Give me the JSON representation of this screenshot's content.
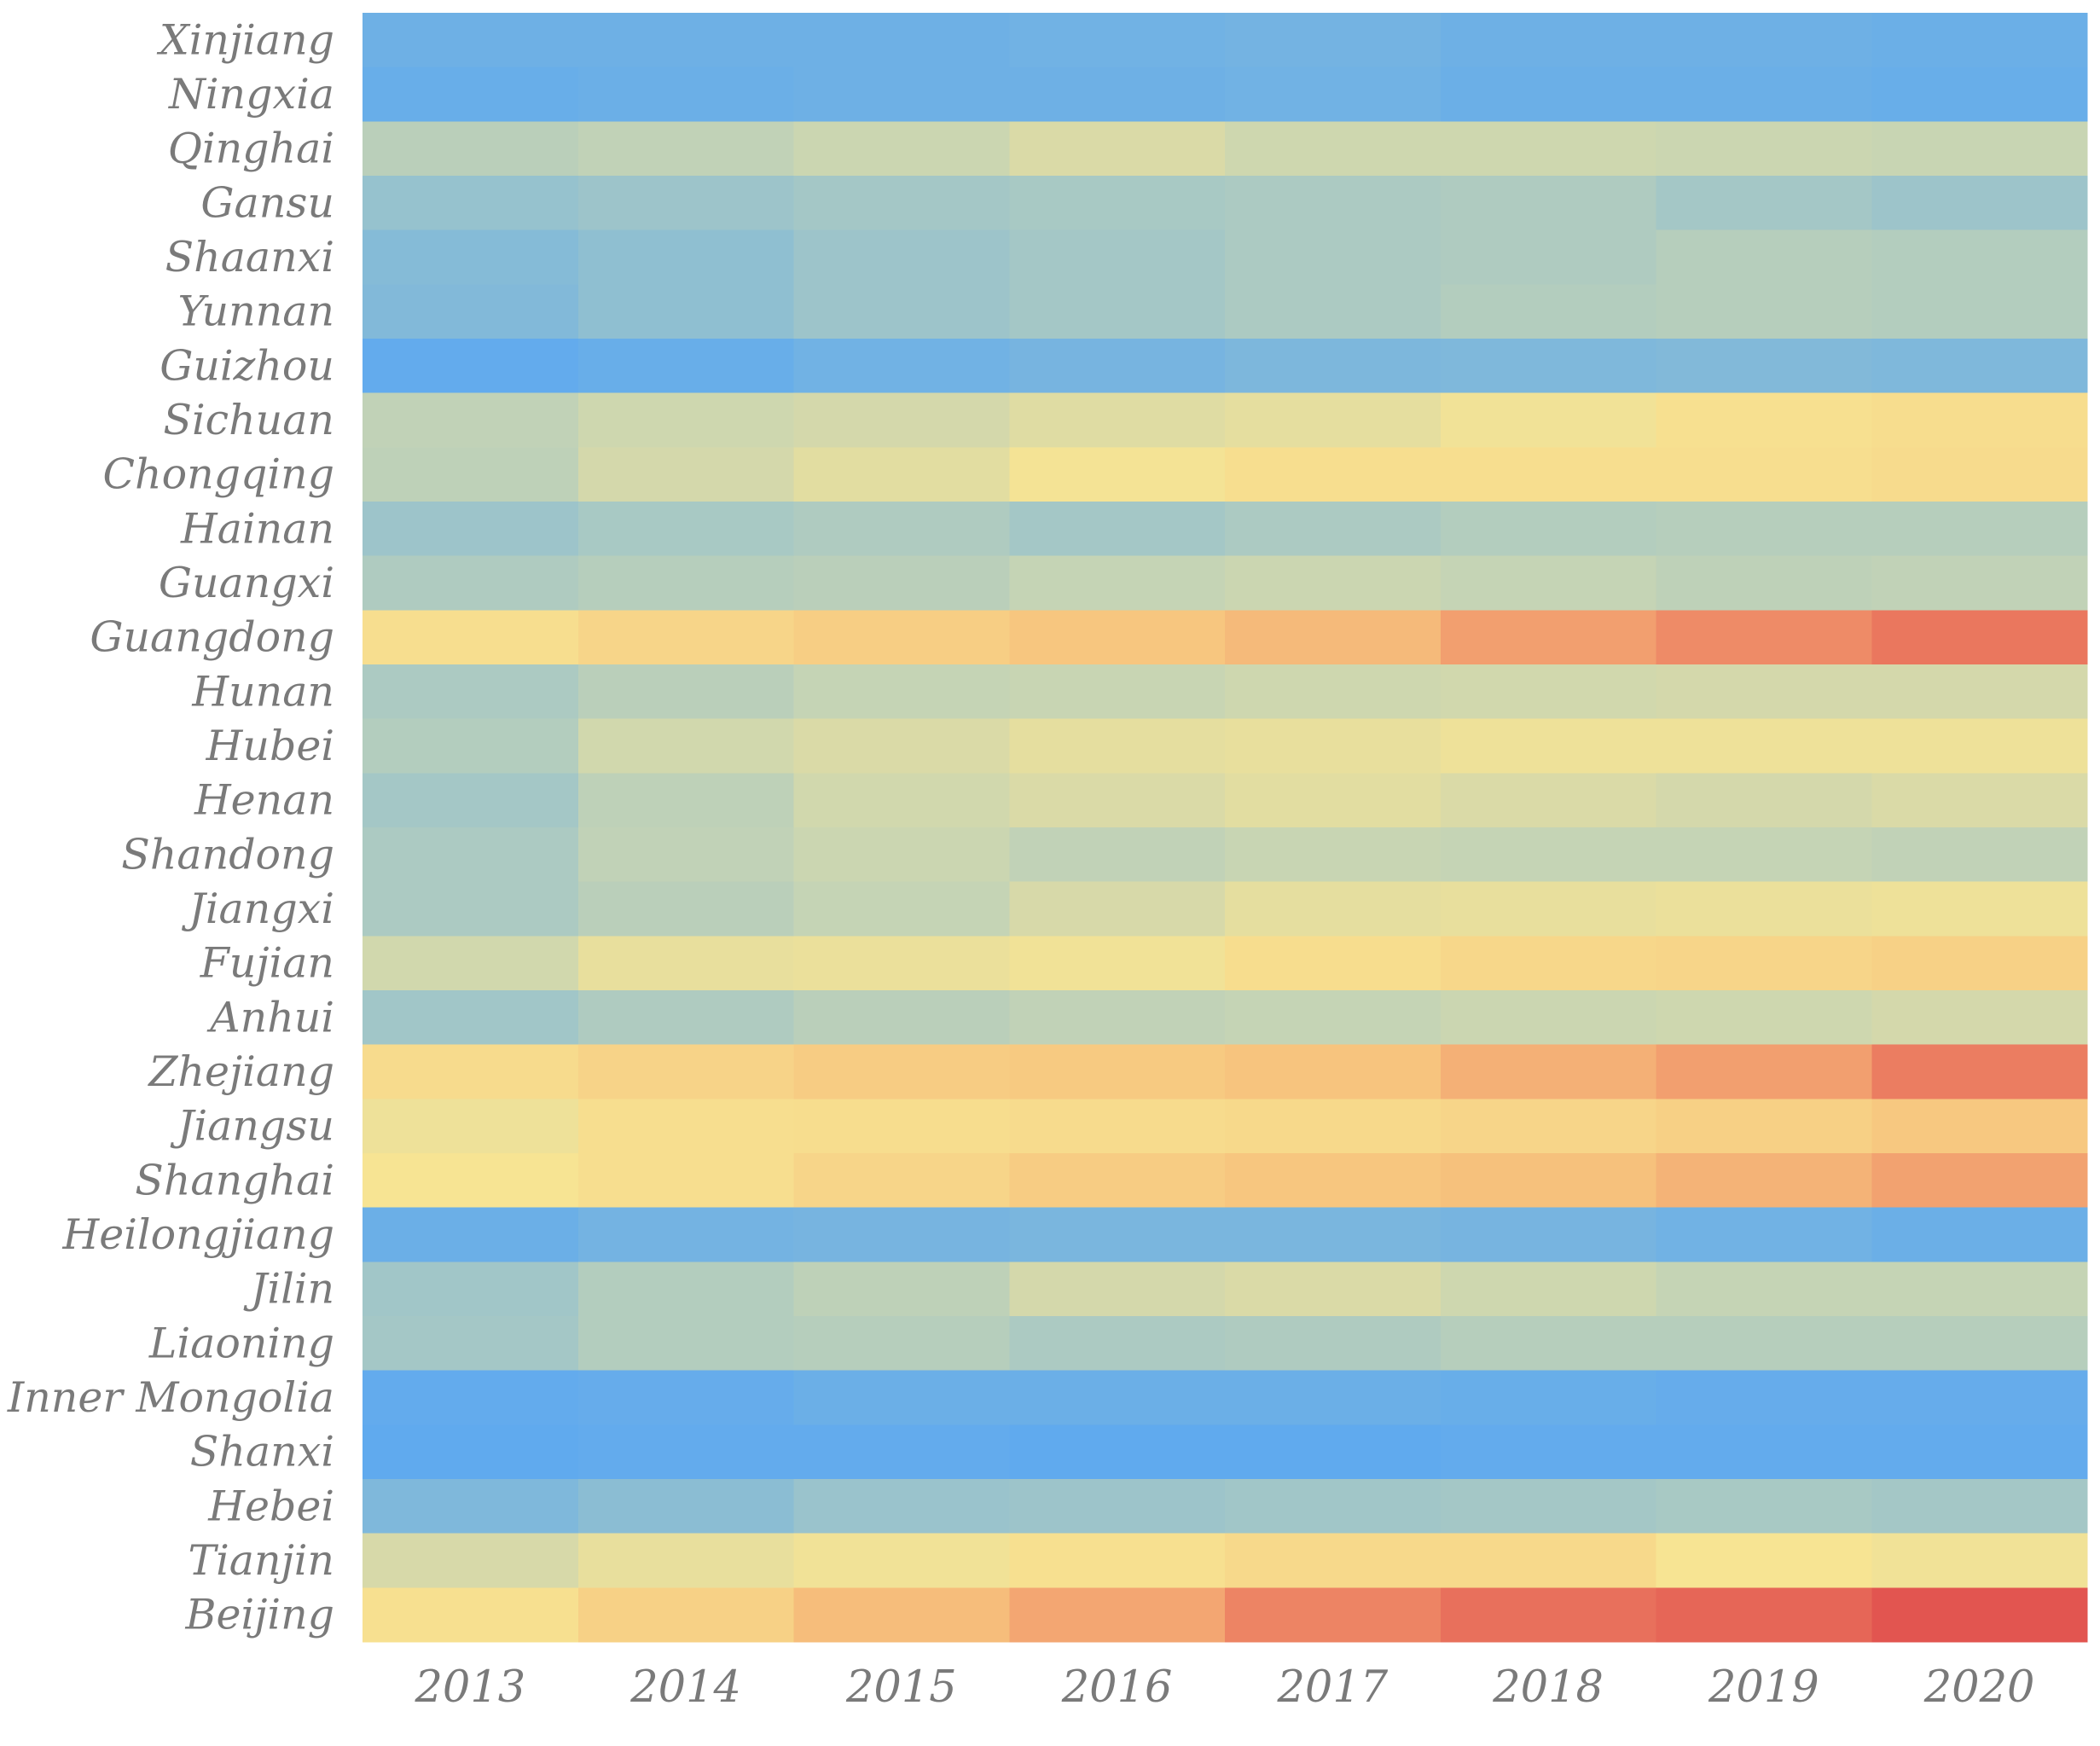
{
  "chart_data": {
    "type": "heatmap",
    "title": "",
    "xlabel": "",
    "ylabel": "",
    "x": [
      "2013",
      "2014",
      "2015",
      "2016",
      "2017",
      "2018",
      "2019",
      "2020"
    ],
    "y": [
      "Xinjiang",
      "Ningxia",
      "Qinghai",
      "Gansu",
      "Shaanxi",
      "Yunnan",
      "Guizhou",
      "Sichuan",
      "Chongqing",
      "Hainan",
      "Guangxi",
      "Guangdong",
      "Hunan",
      "Hubei",
      "Henan",
      "Shandong",
      "Jiangxi",
      "Fujian",
      "Anhui",
      "Zhejiang",
      "Jiangsu",
      "Shanghai",
      "Heilongjiang",
      "Jilin",
      "Liaoning",
      "Inner Mongolia",
      "Shanxi",
      "Hebei",
      "Tianjin",
      "Beijing"
    ],
    "value_range": [
      0,
      1
    ],
    "values": [
      [
        0.07,
        0.07,
        0.07,
        0.08,
        0.09,
        0.07,
        0.07,
        0.06
      ],
      [
        0.05,
        0.06,
        0.07,
        0.07,
        0.08,
        0.06,
        0.06,
        0.05
      ],
      [
        0.3,
        0.32,
        0.35,
        0.4,
        0.36,
        0.36,
        0.35,
        0.34
      ],
      [
        0.2,
        0.22,
        0.24,
        0.25,
        0.26,
        0.27,
        0.24,
        0.22
      ],
      [
        0.15,
        0.18,
        0.22,
        0.24,
        0.26,
        0.27,
        0.29,
        0.28
      ],
      [
        0.14,
        0.18,
        0.22,
        0.24,
        0.26,
        0.28,
        0.29,
        0.28
      ],
      [
        0.03,
        0.05,
        0.08,
        0.1,
        0.12,
        0.13,
        0.14,
        0.13
      ],
      [
        0.32,
        0.36,
        0.38,
        0.42,
        0.44,
        0.48,
        0.52,
        0.54
      ],
      [
        0.31,
        0.38,
        0.43,
        0.49,
        0.53,
        0.53,
        0.53,
        0.55
      ],
      [
        0.22,
        0.25,
        0.27,
        0.24,
        0.26,
        0.28,
        0.29,
        0.29
      ],
      [
        0.27,
        0.29,
        0.3,
        0.33,
        0.35,
        0.33,
        0.31,
        0.32
      ],
      [
        0.53,
        0.58,
        0.62,
        0.66,
        0.7,
        0.78,
        0.84,
        0.9
      ],
      [
        0.26,
        0.3,
        0.33,
        0.34,
        0.36,
        0.37,
        0.38,
        0.38
      ],
      [
        0.28,
        0.37,
        0.4,
        0.44,
        0.45,
        0.47,
        0.47,
        0.47
      ],
      [
        0.24,
        0.31,
        0.37,
        0.4,
        0.43,
        0.4,
        0.38,
        0.4
      ],
      [
        0.26,
        0.32,
        0.35,
        0.32,
        0.34,
        0.33,
        0.33,
        0.32
      ],
      [
        0.26,
        0.3,
        0.33,
        0.39,
        0.44,
        0.45,
        0.46,
        0.47
      ],
      [
        0.37,
        0.45,
        0.46,
        0.48,
        0.54,
        0.57,
        0.58,
        0.6
      ],
      [
        0.23,
        0.27,
        0.3,
        0.32,
        0.33,
        0.35,
        0.36,
        0.38
      ],
      [
        0.55,
        0.59,
        0.63,
        0.64,
        0.67,
        0.73,
        0.78,
        0.88
      ],
      [
        0.47,
        0.53,
        0.54,
        0.55,
        0.56,
        0.58,
        0.61,
        0.65
      ],
      [
        0.5,
        0.53,
        0.58,
        0.63,
        0.66,
        0.68,
        0.72,
        0.77
      ],
      [
        0.06,
        0.09,
        0.1,
        0.11,
        0.11,
        0.1,
        0.08,
        0.06
      ],
      [
        0.23,
        0.28,
        0.31,
        0.38,
        0.4,
        0.36,
        0.33,
        0.33
      ],
      [
        0.24,
        0.28,
        0.29,
        0.26,
        0.27,
        0.29,
        0.29,
        0.29
      ],
      [
        0.03,
        0.04,
        0.06,
        0.06,
        0.06,
        0.05,
        0.04,
        0.04
      ],
      [
        0.02,
        0.03,
        0.03,
        0.02,
        0.02,
        0.03,
        0.03,
        0.03
      ],
      [
        0.13,
        0.17,
        0.21,
        0.22,
        0.23,
        0.24,
        0.25,
        0.24
      ],
      [
        0.39,
        0.45,
        0.48,
        0.52,
        0.56,
        0.56,
        0.5,
        0.48
      ],
      [
        0.52,
        0.6,
        0.69,
        0.76,
        0.86,
        0.92,
        0.95,
        1.0
      ]
    ],
    "colorscale": [
      "#5aa7f2",
      "#8abdd4",
      "#c6d4b4",
      "#f7e493",
      "#f7c57e",
      "#ef8d68",
      "#e25550"
    ],
    "grid": false,
    "legend": "none"
  }
}
